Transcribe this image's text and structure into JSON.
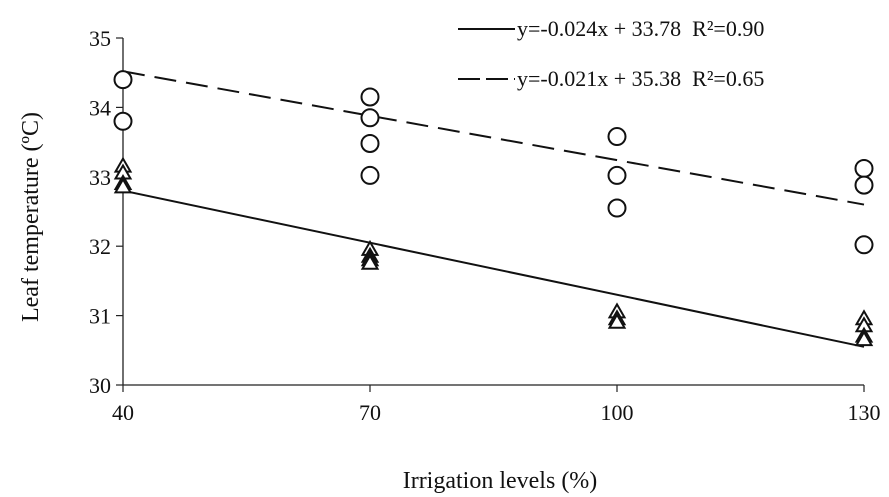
{
  "chart_data": {
    "type": "scatter",
    "title": "",
    "xlabel": "Irrigation levels (%)",
    "ylabel": "Leaf temperature (ºC)",
    "x_ticks": [
      40,
      70,
      100,
      130
    ],
    "y_ticks": [
      30,
      31,
      32,
      33,
      34,
      35
    ],
    "xlim": [
      40,
      130
    ],
    "ylim": [
      30,
      35
    ],
    "grid": false,
    "legend_position": "top-right",
    "series": [
      {
        "marker": "triangle",
        "points": [
          {
            "x": 40,
            "y": 33.15
          },
          {
            "x": 40,
            "y": 33.05
          },
          {
            "x": 40,
            "y": 32.9
          },
          {
            "x": 40,
            "y": 32.85
          },
          {
            "x": 70,
            "y": 31.95
          },
          {
            "x": 70,
            "y": 31.85
          },
          {
            "x": 70,
            "y": 31.8
          },
          {
            "x": 70,
            "y": 31.75
          },
          {
            "x": 100,
            "y": 31.05
          },
          {
            "x": 100,
            "y": 30.95
          },
          {
            "x": 100,
            "y": 30.9
          },
          {
            "x": 130,
            "y": 30.95
          },
          {
            "x": 130,
            "y": 30.85
          },
          {
            "x": 130,
            "y": 30.7
          },
          {
            "x": 130,
            "y": 30.65
          }
        ],
        "trendline": {
          "style": "solid",
          "equation": "y=-0.024x + 33.78",
          "r2_label": "R²=0.90",
          "y_at_xmin": 32.8,
          "y_at_xmax": 30.55
        }
      },
      {
        "marker": "circle",
        "points": [
          {
            "x": 40,
            "y": 34.4
          },
          {
            "x": 40,
            "y": 33.8
          },
          {
            "x": 70,
            "y": 34.15
          },
          {
            "x": 70,
            "y": 33.85
          },
          {
            "x": 70,
            "y": 33.48
          },
          {
            "x": 70,
            "y": 33.02
          },
          {
            "x": 100,
            "y": 33.58
          },
          {
            "x": 100,
            "y": 33.02
          },
          {
            "x": 100,
            "y": 32.55
          },
          {
            "x": 130,
            "y": 33.12
          },
          {
            "x": 130,
            "y": 32.88
          },
          {
            "x": 130,
            "y": 32.02
          }
        ],
        "trendline": {
          "style": "dashed",
          "equation": "y=-0.021x + 35.38",
          "r2_label": "R²=0.65",
          "y_at_xmin": 34.52,
          "y_at_xmax": 32.6
        }
      }
    ]
  },
  "legend": {
    "entry_solid": "y=-0.024x + 33.78  R²=0.90",
    "entry_dashed": "y=-0.021x + 35.38  R²=0.65"
  }
}
